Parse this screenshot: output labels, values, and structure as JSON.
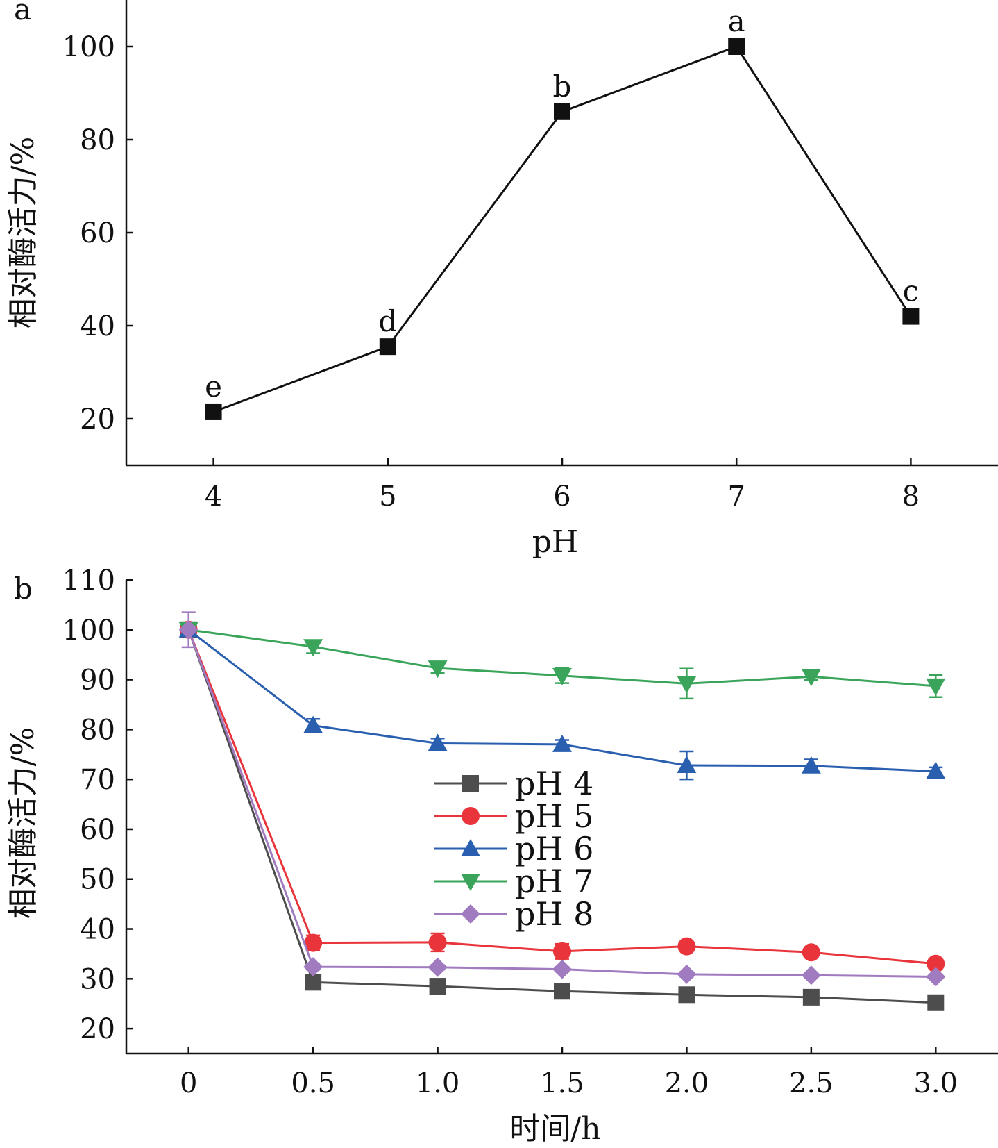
{
  "chart_data": [
    {
      "type": "line",
      "panel_label": "a",
      "x": [
        4,
        5,
        6,
        7,
        8
      ],
      "series": [
        {
          "values": [
            21.5,
            35.5,
            86,
            100,
            42
          ],
          "color": "#111111",
          "marker": "square"
        }
      ],
      "point_labels": [
        "e",
        "d",
        "b",
        "a",
        "c"
      ],
      "xlabel": "pH",
      "ylabel": "相对酶活力/%",
      "xticks": [
        "4",
        "5",
        "6",
        "7",
        "8"
      ],
      "yticks": [
        "20",
        "40",
        "60",
        "80",
        "100"
      ],
      "xlim": [
        3.5,
        8.5
      ],
      "ylim": [
        10,
        110
      ],
      "grid": false,
      "legend": "none"
    },
    {
      "type": "line",
      "panel_label": "b",
      "x": [
        0,
        0.5,
        1.0,
        1.5,
        2.0,
        2.5,
        3.0
      ],
      "series": [
        {
          "name": "pH 4",
          "color": "#4d4d4d",
          "marker": "square",
          "values": [
            100,
            29.3,
            28.5,
            27.5,
            26.8,
            26.3,
            25.2
          ],
          "errors": [
            0,
            0.5,
            0.5,
            0.5,
            0.5,
            0.5,
            0.5
          ]
        },
        {
          "name": "pH 5",
          "color": "#e8343a",
          "marker": "circle",
          "values": [
            100,
            37.2,
            37.3,
            35.5,
            36.5,
            35.3,
            33
          ],
          "errors": [
            0,
            1.5,
            1.8,
            1.5,
            0.8,
            0.8,
            0.8
          ]
        },
        {
          "name": "pH 6",
          "color": "#2a5fb0",
          "marker": "triangle-up",
          "values": [
            100,
            80.8,
            77.2,
            77,
            72.8,
            72.7,
            71.6
          ],
          "errors": [
            0,
            1.3,
            1.0,
            0.9,
            2.8,
            1.3,
            0.8
          ]
        },
        {
          "name": "pH 7",
          "color": "#3aa55a",
          "marker": "triangle-down",
          "values": [
            100,
            96.6,
            92.3,
            90.8,
            89.2,
            90.6,
            88.7
          ],
          "errors": [
            0,
            1.3,
            1.0,
            1.5,
            3.0,
            0.7,
            2.2
          ]
        },
        {
          "name": "pH 8",
          "color": "#a07bc0",
          "marker": "diamond",
          "values": [
            100,
            32.4,
            32.3,
            31.9,
            30.9,
            30.7,
            30.4
          ],
          "errors": [
            3.5,
            0.6,
            0.5,
            0.5,
            0.5,
            0.5,
            0.5
          ]
        }
      ],
      "xlabel": "时间/h",
      "ylabel": "相对酶活力/%",
      "xticks": [
        "0",
        "0.5",
        "1.0",
        "1.5",
        "2.0",
        "2.5",
        "3.0"
      ],
      "yticks": [
        "20",
        "30",
        "40",
        "50",
        "60",
        "70",
        "80",
        "90",
        "100",
        "110"
      ],
      "xlim": [
        -0.25,
        3.25
      ],
      "ylim": [
        15,
        110
      ],
      "grid": false,
      "legend": "center"
    }
  ]
}
